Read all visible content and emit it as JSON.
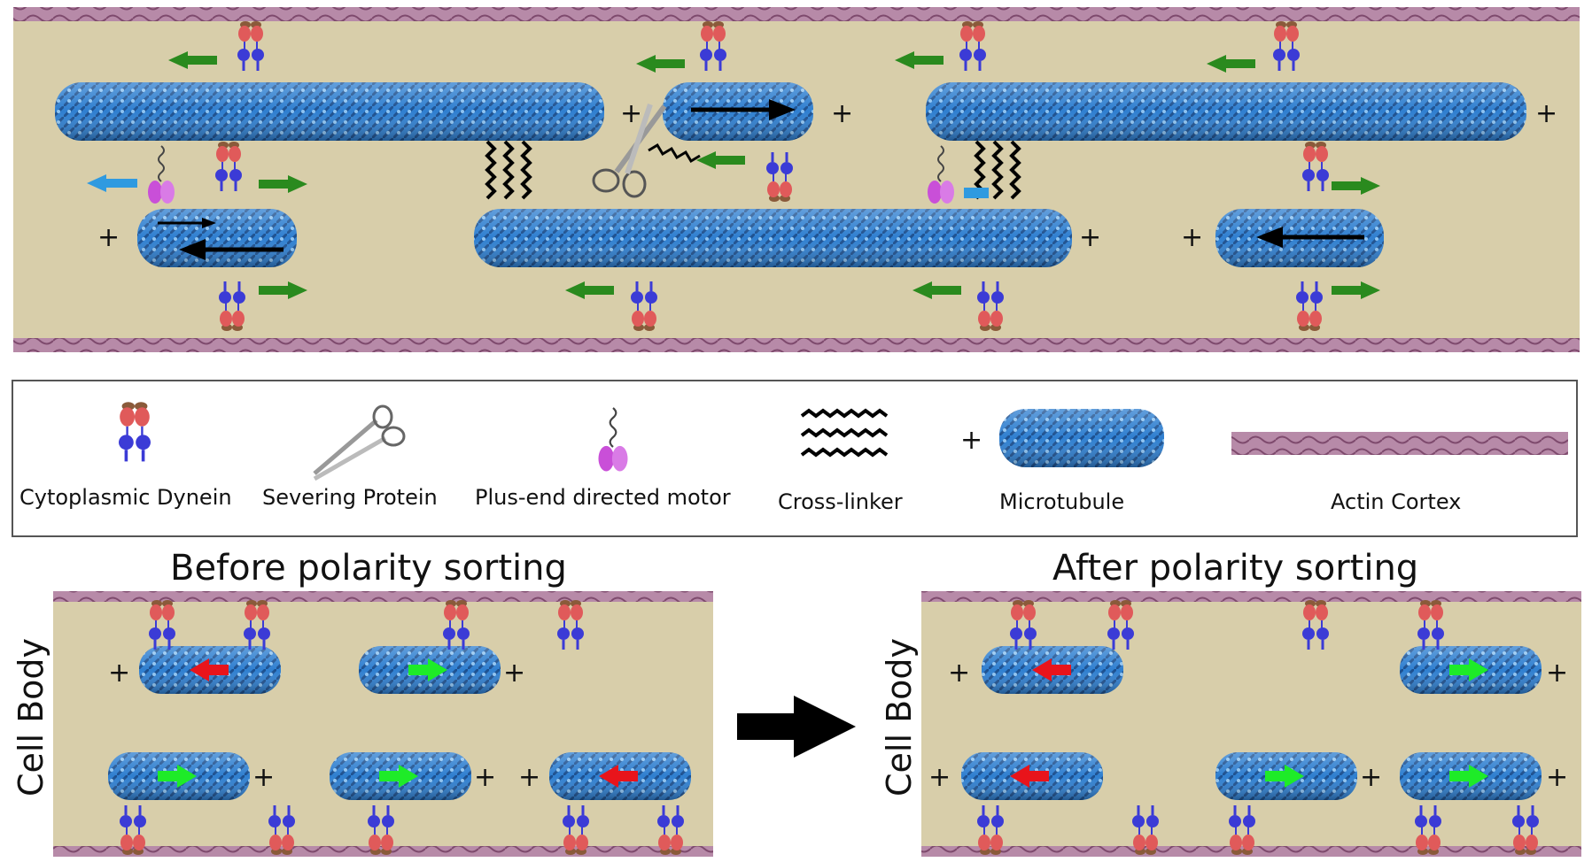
{
  "legend": {
    "dynein": "Cytoplasmic Dynein",
    "severing": "Severing Protein",
    "plus_motor": "Plus-end directed motor",
    "crosslinker": "Cross-linker",
    "microtubule": "Microtubule",
    "actin": "Actin Cortex"
  },
  "plus_sign": "+",
  "before_title": "Before polarity sorting",
  "after_title": "After polarity sorting",
  "cell_body_label": "Cell Body",
  "colors": {
    "cytoplasm": "#d8ceaa",
    "actin": "#9c6a8c",
    "microtubule": "#2f7fd0",
    "dynein_head": "#e05a5a",
    "dynein_foot": "#3b3bd6",
    "plus_motor": "#c94fd8",
    "arrow_green": "#2a8a1e",
    "arrow_blue": "#2f9ae0",
    "arrow_red": "#e8141b",
    "arrow_lime": "#1eeb28"
  }
}
